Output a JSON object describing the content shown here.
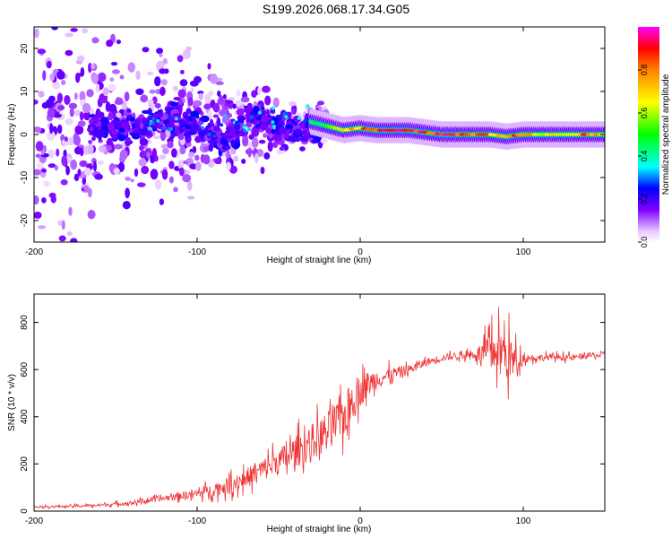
{
  "title": "S199.2026.068.17.34.G05",
  "chart_data": [
    {
      "type": "heatmap",
      "xlabel": "Height of straight line (km)",
      "ylabel": "Frequency (Hz)",
      "xlim": [
        -200,
        150
      ],
      "ylim": [
        -25,
        25
      ],
      "xticks": [
        -200,
        -100,
        0,
        100
      ],
      "yticks": [
        -20,
        -10,
        0,
        10,
        20
      ],
      "colorbar": {
        "label": "Normalized spectral amplitude",
        "range": [
          0,
          1
        ],
        "ticks": [
          "0.0",
          "0.2",
          "0.4",
          "0.6",
          "0.8"
        ]
      },
      "ridge": [
        {
          "x": -30,
          "f": 3,
          "amp": 0.35
        },
        {
          "x": -20,
          "f": 2,
          "amp": 0.55
        },
        {
          "x": -10,
          "f": 1,
          "amp": 0.7
        },
        {
          "x": 0,
          "f": 1.5,
          "amp": 0.75
        },
        {
          "x": 10,
          "f": 1,
          "amp": 0.85
        },
        {
          "x": 20,
          "f": 1,
          "amp": 0.9
        },
        {
          "x": 30,
          "f": 1,
          "amp": 0.95
        },
        {
          "x": 40,
          "f": 0.5,
          "amp": 0.9
        },
        {
          "x": 50,
          "f": 0,
          "amp": 0.95
        },
        {
          "x": 60,
          "f": 0,
          "amp": 0.85
        },
        {
          "x": 70,
          "f": 0,
          "amp": 0.8
        },
        {
          "x": 80,
          "f": 0,
          "amp": 0.75
        },
        {
          "x": 90,
          "f": -0.5,
          "amp": 0.8
        },
        {
          "x": 100,
          "f": 0,
          "amp": 0.8
        },
        {
          "x": 110,
          "f": 0,
          "amp": 0.7
        },
        {
          "x": 120,
          "f": 0,
          "amp": 0.65
        },
        {
          "x": 130,
          "f": 0,
          "amp": 0.75
        },
        {
          "x": 140,
          "f": 0,
          "amp": 0.8
        },
        {
          "x": 150,
          "f": 0,
          "amp": 0.75
        }
      ]
    },
    {
      "type": "line",
      "xlabel": "Height of straight line (km)",
      "ylabel": "SNR (10 * v/v)",
      "xlim": [
        -200,
        150
      ],
      "ylim": [
        0,
        920
      ],
      "xticks": [
        -200,
        -100,
        0,
        100
      ],
      "yticks": [
        0,
        200,
        400,
        600,
        800
      ],
      "series": [
        {
          "name": "SNR",
          "color": "#ee3333",
          "x": [
            -200,
            -180,
            -160,
            -140,
            -120,
            -100,
            -90,
            -80,
            -70,
            -60,
            -50,
            -40,
            -30,
            -20,
            -10,
            -5,
            0,
            5,
            10,
            20,
            30,
            40,
            50,
            60,
            70,
            80,
            85,
            90,
            95,
            100,
            110,
            120,
            130,
            140,
            150
          ],
          "y": [
            18,
            20,
            25,
            35,
            55,
            75,
            90,
            110,
            140,
            175,
            210,
            250,
            290,
            340,
            400,
            470,
            510,
            540,
            560,
            580,
            600,
            630,
            650,
            660,
            665,
            670,
            690,
            660,
            630,
            650,
            650,
            655,
            650,
            660,
            660
          ],
          "noise": [
            6,
            8,
            10,
            15,
            20,
            35,
            45,
            60,
            70,
            80,
            95,
            110,
            130,
            140,
            150,
            140,
            110,
            90,
            70,
            50,
            35,
            30,
            25,
            25,
            30,
            140,
            160,
            180,
            120,
            30,
            25,
            22,
            22,
            20,
            20
          ]
        }
      ]
    }
  ]
}
